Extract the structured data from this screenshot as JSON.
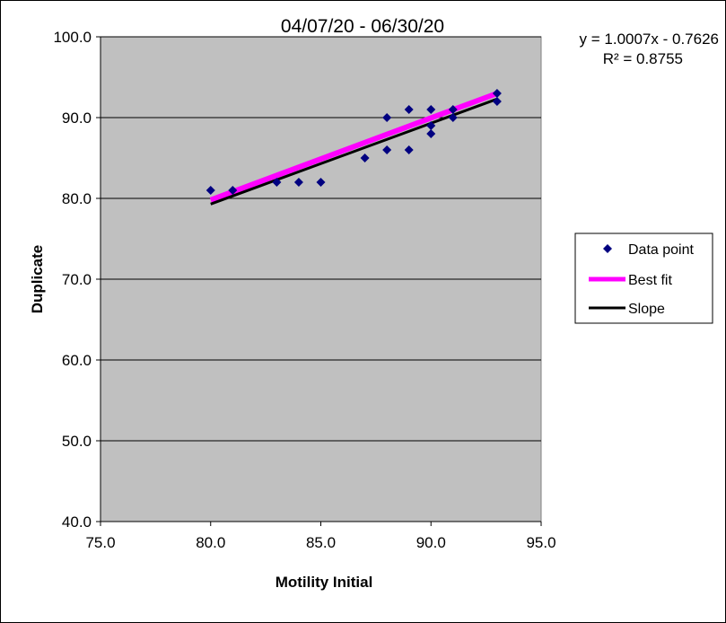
{
  "chart_data": {
    "type": "scatter",
    "title": "04/07/20 - 06/30/20",
    "xlabel": "Motility Initial",
    "ylabel": "Duplicate",
    "xlim": [
      75,
      95
    ],
    "ylim": [
      40,
      100
    ],
    "x_ticks": [
      "75.0",
      "80.0",
      "85.0",
      "90.0",
      "95.0"
    ],
    "y_ticks": [
      "40.0",
      "50.0",
      "60.0",
      "70.0",
      "80.0",
      "90.0",
      "100.0"
    ],
    "grid": "horizontal",
    "plot_background": "#c0c0c0",
    "legend_position": "right",
    "trendline": {
      "equation": "y = 1.0007x - 0.7626",
      "r_squared": "R² = 0.8755",
      "slope": 1.0007,
      "intercept": -0.7626
    },
    "series": [
      {
        "name": "Data point",
        "kind": "marker",
        "marker": "diamond",
        "color": "#000080",
        "x": [
          80,
          81,
          83,
          84,
          85,
          87,
          88,
          88,
          89,
          89,
          90,
          90,
          90,
          91,
          91,
          93,
          93
        ],
        "y": [
          81,
          81,
          82,
          82,
          82,
          85,
          86,
          90,
          86,
          91,
          91,
          89,
          88,
          90,
          91,
          93,
          92
        ]
      },
      {
        "name": "Best fit",
        "kind": "line",
        "color": "#ff00ff",
        "x": [
          80,
          93
        ],
        "y": [
          79.8,
          93.0
        ]
      },
      {
        "name": "Slope",
        "kind": "line",
        "color": "#000000",
        "x": [
          80,
          93
        ],
        "y": [
          79.3,
          92.3
        ]
      }
    ]
  }
}
